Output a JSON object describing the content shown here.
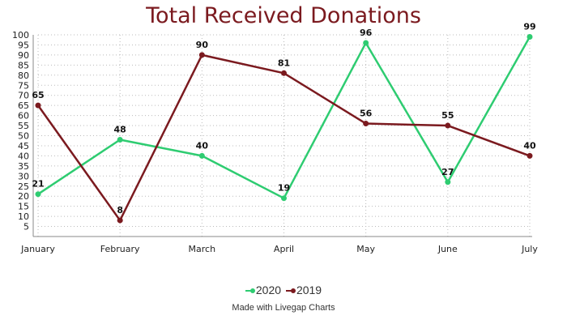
{
  "chart_data": {
    "type": "line",
    "title": "Total Received Donations",
    "categories": [
      "January",
      "February",
      "March",
      "April",
      "May",
      "June",
      "July"
    ],
    "series": [
      {
        "name": "2020",
        "color": "#2ecc71",
        "values": [
          21,
          48,
          40,
          19,
          96,
          27,
          99
        ]
      },
      {
        "name": "2019",
        "color": "#7b1a1f",
        "values": [
          65,
          8,
          90,
          81,
          56,
          55,
          40
        ]
      }
    ],
    "yticks": [
      5,
      10,
      15,
      20,
      25,
      30,
      35,
      40,
      45,
      50,
      55,
      60,
      65,
      70,
      75,
      80,
      85,
      90,
      95,
      100
    ],
    "ylim": [
      0,
      100
    ],
    "grid": true,
    "legend_position": "bottom",
    "xlabel": "",
    "ylabel": ""
  },
  "credit": "Made with Livegap Charts"
}
